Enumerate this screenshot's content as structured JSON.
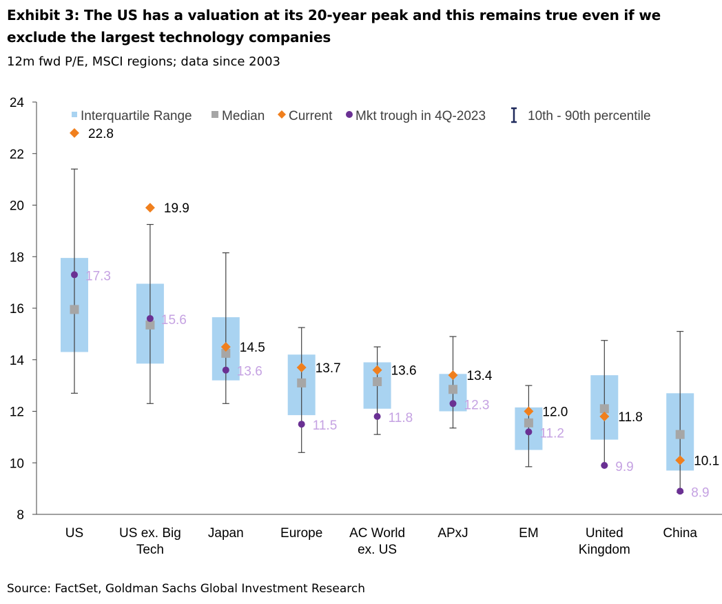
{
  "title": "Exhibit 3: The US has a valuation at its 20-year peak and this remains true even if we exclude the largest technology companies",
  "subtitle": "12m fwd P/E, MSCI regions; data since 2003",
  "source": "Source: FactSet, Goldman Sachs Global Investment Research",
  "colors": {
    "iqr": "#a9d3f1",
    "median": "#a6a6a6",
    "current": "#f07f1d",
    "trough": "#6a3093",
    "trough_label": "#c5a2e2",
    "whisker": "#404040",
    "axis": "#404040"
  },
  "chart_data": {
    "type": "box",
    "ylim": [
      8,
      24
    ],
    "yticks": [
      "8",
      "10",
      "12",
      "14",
      "16",
      "18",
      "20",
      "22",
      "24"
    ],
    "legend": {
      "iqr": "Interquartile Range",
      "median": "Median",
      "current": "Current",
      "trough": "Mkt trough in 4Q-2023",
      "range": "10th - 90th percentile"
    },
    "categories": [
      {
        "label": [
          "US"
        ],
        "p10": 12.7,
        "p90": 21.4,
        "q1": 14.3,
        "q3": 17.95,
        "median": 15.95,
        "current": 22.8,
        "current_label": "22.8",
        "trough": 17.3,
        "trough_label": "17.3"
      },
      {
        "label": [
          "US ex. Big",
          "Tech"
        ],
        "p10": 12.3,
        "p90": 19.25,
        "q1": 13.85,
        "q3": 16.95,
        "median": 15.35,
        "current": 19.9,
        "current_label": "19.9",
        "trough": 15.6,
        "trough_label": "15.6"
      },
      {
        "label": [
          "Japan"
        ],
        "p10": 12.3,
        "p90": 18.15,
        "q1": 13.2,
        "q3": 15.65,
        "median": 14.25,
        "current": 14.5,
        "current_label": "14.5",
        "trough": 13.6,
        "trough_label": "13.6"
      },
      {
        "label": [
          "Europe"
        ],
        "p10": 10.4,
        "p90": 15.25,
        "q1": 11.85,
        "q3": 14.2,
        "median": 13.1,
        "current": 13.7,
        "current_label": "13.7",
        "trough": 11.5,
        "trough_label": "11.5"
      },
      {
        "label": [
          "AC World",
          "ex. US"
        ],
        "p10": 11.1,
        "p90": 14.5,
        "q1": 12.1,
        "q3": 13.9,
        "median": 13.15,
        "current": 13.6,
        "current_label": "13.6",
        "trough": 11.8,
        "trough_label": "11.8"
      },
      {
        "label": [
          "APxJ"
        ],
        "p10": 11.35,
        "p90": 14.9,
        "q1": 12.0,
        "q3": 13.45,
        "median": 12.85,
        "current": 13.4,
        "current_label": "13.4",
        "trough": 12.3,
        "trough_label": "12.3"
      },
      {
        "label": [
          "EM"
        ],
        "p10": 9.85,
        "p90": 13.0,
        "q1": 10.5,
        "q3": 12.15,
        "median": 11.55,
        "current": 12.0,
        "current_label": "12.0",
        "trough": 11.2,
        "trough_label": "11.2"
      },
      {
        "label": [
          "United",
          "Kingdom"
        ],
        "p10": 9.9,
        "p90": 14.75,
        "q1": 10.9,
        "q3": 13.4,
        "median": 12.1,
        "current": 11.8,
        "current_label": "11.8",
        "trough": 9.9,
        "trough_label": "9.9"
      },
      {
        "label": [
          "China"
        ],
        "p10": 8.85,
        "p90": 15.1,
        "q1": 9.7,
        "q3": 12.7,
        "median": 11.1,
        "current": 10.1,
        "current_label": "10.1",
        "trough": 8.9,
        "trough_label": "8.9"
      }
    ]
  }
}
